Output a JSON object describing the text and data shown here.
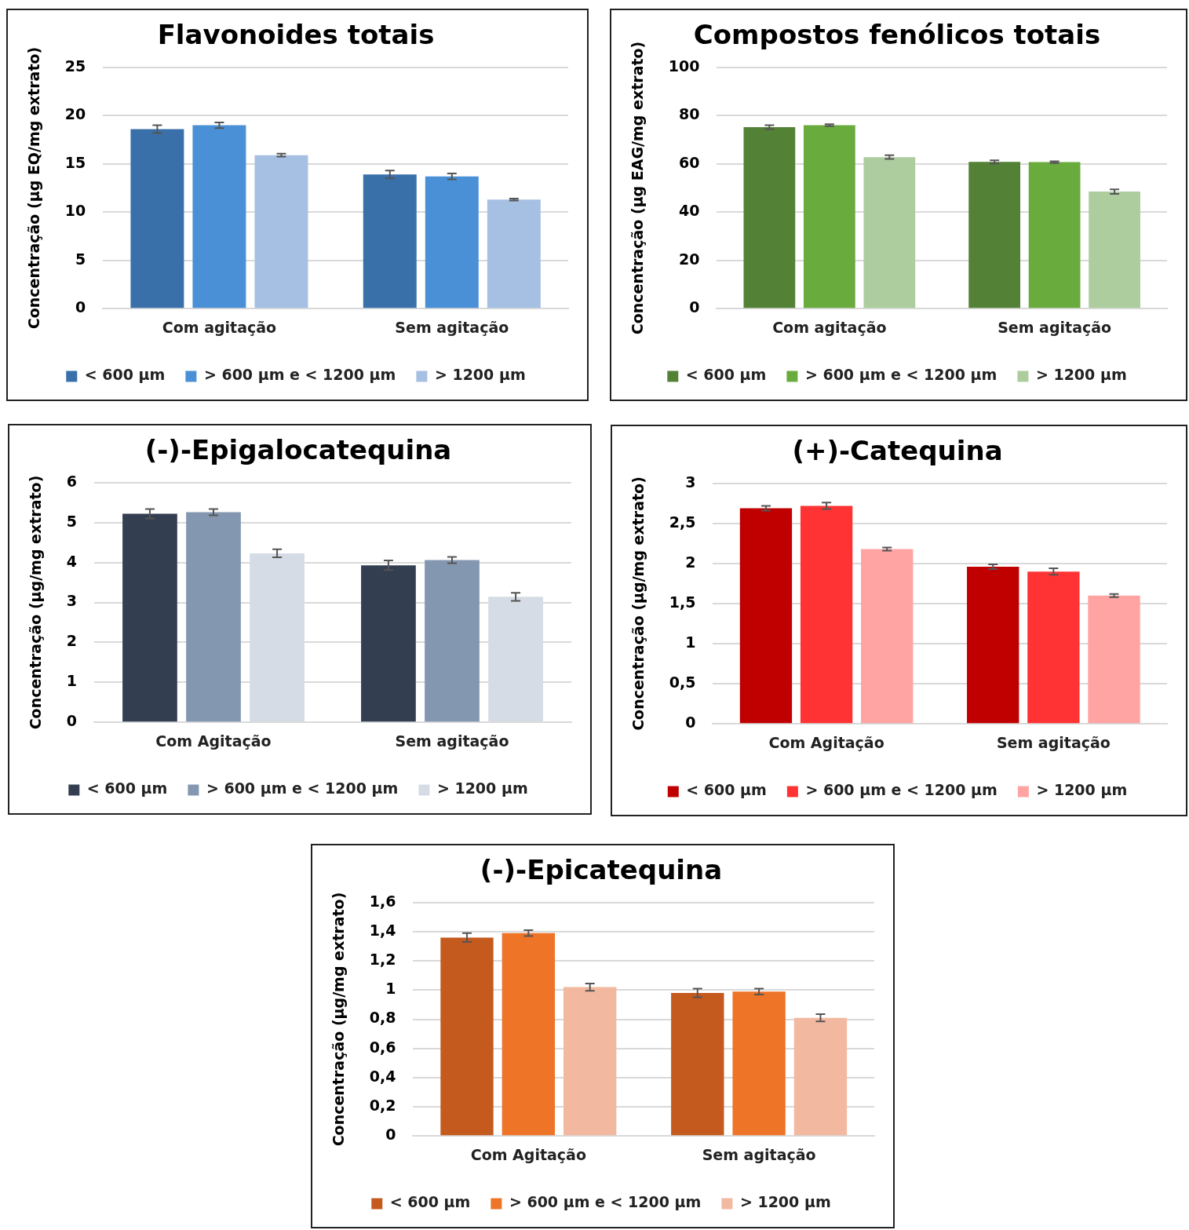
{
  "chart_data": [
    {
      "type": "bar",
      "title": "Flavonoides totais",
      "ylabel": "Concentração (µg EQ/mg extrato)",
      "categories": [
        "Com agitação",
        "Sem agitação"
      ],
      "series": [
        {
          "name": "< 600 µm",
          "color": "#3a70aa",
          "values": [
            18.6,
            13.9
          ],
          "errors": [
            0.4,
            0.4
          ]
        },
        {
          "name": "> 600 µm e < 1200 µm",
          "color": "#4a90d6",
          "values": [
            19.0,
            13.7
          ],
          "errors": [
            0.3,
            0.3
          ]
        },
        {
          "name": "> 1200 µm",
          "color": "#a6c0e3",
          "values": [
            15.9,
            11.3
          ],
          "errors": [
            0.15,
            0.1
          ]
        }
      ],
      "ylim": [
        0,
        25
      ],
      "yticks": [
        0,
        5,
        10,
        15,
        20,
        25
      ],
      "grid": "y",
      "legend": "bottom"
    },
    {
      "type": "bar",
      "title": "Compostos fenólicos totais",
      "ylabel": "Concentração (µg EAG/mg extrato)",
      "categories": [
        "Com agitação",
        "Sem agitação"
      ],
      "series": [
        {
          "name": "< 600 µm",
          "color": "#538135",
          "values": [
            75.2,
            60.8
          ],
          "errors": [
            0.8,
            0.7
          ]
        },
        {
          "name": "> 600 µm e < 1200 µm",
          "color": "#6aab3e",
          "values": [
            76.0,
            60.7
          ],
          "errors": [
            0.4,
            0.4
          ]
        },
        {
          "name": "> 1200 µm",
          "color": "#aecd9e",
          "values": [
            62.8,
            48.5
          ],
          "errors": [
            0.8,
            0.9
          ]
        }
      ],
      "ylim": [
        0,
        100
      ],
      "yticks": [
        0,
        20,
        40,
        60,
        80,
        100
      ],
      "grid": "y",
      "legend": "bottom"
    },
    {
      "type": "bar",
      "title": "(-)-Epigalocatequina",
      "ylabel": "Concentração (µg/mg extrato)",
      "categories": [
        "Com Agitação",
        "Sem agitação"
      ],
      "series": [
        {
          "name": "< 600 µm",
          "color": "#333e50",
          "values": [
            5.22,
            3.93
          ],
          "errors": [
            0.12,
            0.12
          ]
        },
        {
          "name": "> 600 µm e < 1200 µm",
          "color": "#8497b0",
          "values": [
            5.26,
            4.06
          ],
          "errors": [
            0.08,
            0.08
          ]
        },
        {
          "name": "> 1200 µm",
          "color": "#d6dce5",
          "values": [
            4.23,
            3.14
          ],
          "errors": [
            0.1,
            0.1
          ]
        }
      ],
      "ylim": [
        0,
        6
      ],
      "yticks": [
        0,
        1,
        2,
        3,
        4,
        5,
        6
      ],
      "grid": "y",
      "legend": "bottom"
    },
    {
      "type": "bar",
      "title": "(+)-Catequina",
      "ylabel": "Concentração (µg/mg extrato)",
      "categories": [
        "Com Agitação",
        "Sem agitação"
      ],
      "series": [
        {
          "name": "< 600 µm",
          "color": "#c00000",
          "values": [
            2.69,
            1.96
          ],
          "errors": [
            0.03,
            0.03
          ]
        },
        {
          "name": "> 600 µm e < 1200 µm",
          "color": "#ff3333",
          "values": [
            2.72,
            1.9
          ],
          "errors": [
            0.04,
            0.04
          ]
        },
        {
          "name": "> 1200 µm",
          "color": "#ffa3a3",
          "values": [
            2.18,
            1.6
          ],
          "errors": [
            0.02,
            0.02
          ]
        }
      ],
      "ylim": [
        0,
        3
      ],
      "yticks": [
        0,
        {
          "value": 0.5,
          "label": "0,5"
        },
        1,
        {
          "value": 1.5,
          "label": "1,5"
        },
        2,
        {
          "value": 2.5,
          "label": "2,5"
        },
        3
      ],
      "grid": "y",
      "legend": "bottom"
    },
    {
      "type": "bar",
      "title": "(-)-Epicatequina",
      "ylabel": "Concentração (µg/mg extrato)",
      "categories": [
        "Com Agitação",
        "Sem agitação"
      ],
      "series": [
        {
          "name": "< 600 µm",
          "color": "#c55a1e",
          "values": [
            1.36,
            0.98
          ],
          "errors": [
            0.03,
            0.03
          ]
        },
        {
          "name": "> 600 µm e < 1200 µm",
          "color": "#ee7428",
          "values": [
            1.39,
            0.99
          ],
          "errors": [
            0.02,
            0.02
          ]
        },
        {
          "name": "> 1200 µm",
          "color": "#f2b8a0",
          "values": [
            1.02,
            0.81
          ],
          "errors": [
            0.025,
            0.025
          ]
        }
      ],
      "ylim": [
        0,
        1.6
      ],
      "yticks": [
        0,
        {
          "value": 0.2,
          "label": "0,2"
        },
        {
          "value": 0.4,
          "label": "0,4"
        },
        {
          "value": 0.6,
          "label": "0,6"
        },
        {
          "value": 0.8,
          "label": "0,8"
        },
        1,
        {
          "value": 1.2,
          "label": "1,2"
        },
        {
          "value": 1.4,
          "label": "1,4"
        },
        {
          "value": 1.6,
          "label": "1,6"
        }
      ],
      "grid": "y",
      "legend": "bottom"
    }
  ]
}
